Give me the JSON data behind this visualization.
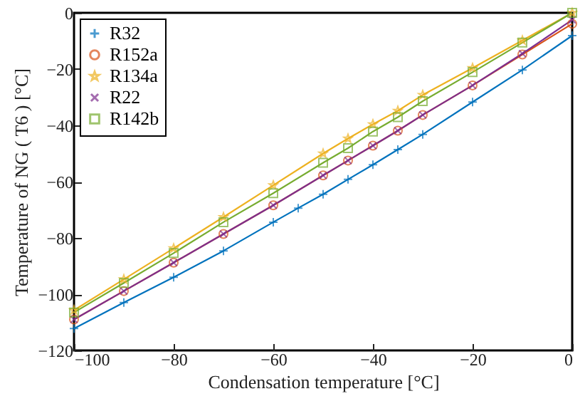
{
  "chart_data": {
    "type": "line",
    "xlabel": "Condensation temperature [°C]",
    "ylabel": "Temperature of NG ( T6 ) [°C]",
    "xlim": [
      -100,
      0
    ],
    "xticks": [
      -100,
      -80,
      -60,
      -40,
      -20,
      0
    ],
    "ylim": [
      -120,
      0
    ],
    "yticks": [
      -120,
      -100,
      -80,
      -60,
      -40,
      -20,
      0
    ],
    "grid": false,
    "legend": "top left",
    "series": [
      {
        "name": "R32",
        "color": "#0072bd",
        "marker": "cross",
        "x": [
          -100,
          -90,
          -80,
          -70,
          -60,
          -55,
          -50,
          -45,
          -40,
          -35,
          -30,
          -20,
          -10,
          0
        ],
        "values": [
          -112.2,
          -103,
          -94,
          -84.6,
          -74.4,
          -69.4,
          -64.5,
          -59.2,
          -54,
          -48.6,
          -43.2,
          -31.7,
          -20.3,
          -8.1
        ]
      },
      {
        "name": "R152a",
        "color": "#d95319",
        "marker": "circle",
        "x": [
          -100,
          -90,
          -80,
          -70,
          -60,
          -50,
          -45,
          -40,
          -35,
          -30,
          -20,
          -10,
          0
        ],
        "values": [
          -109,
          -98.9,
          -88.8,
          -78.6,
          -68.4,
          -57.8,
          -52.5,
          -47.2,
          -41.9,
          -36.3,
          -25.8,
          -14.8,
          -3.9
        ]
      },
      {
        "name": "R134a",
        "color": "#edb120",
        "marker": "star",
        "x": [
          -100,
          -90,
          -80,
          -70,
          -60,
          -50,
          -45,
          -40,
          -35,
          -30,
          -20,
          -10,
          0
        ],
        "values": [
          -105.7,
          -94.7,
          -83.7,
          -72.6,
          -61.3,
          -50,
          -44.7,
          -39.6,
          -34.8,
          -29.2,
          -19.6,
          -9.8,
          0
        ]
      },
      {
        "name": "R22",
        "color": "#7e2f8e",
        "marker": "x",
        "x": [
          -100,
          -90,
          -80,
          -70,
          -60,
          -50,
          -45,
          -40,
          -35,
          -30,
          -20,
          -10,
          0
        ],
        "values": [
          -109,
          -98.9,
          -88.8,
          -78.6,
          -68.4,
          -57.8,
          -52.5,
          -47.2,
          -41.9,
          -36.3,
          -25.8,
          -14.5,
          -2.5
        ]
      },
      {
        "name": "R142b",
        "color": "#77ac30",
        "marker": "square",
        "x": [
          -100,
          -90,
          -80,
          -70,
          -60,
          -50,
          -45,
          -40,
          -35,
          -30,
          -20,
          -10,
          0
        ],
        "values": [
          -106.5,
          -96,
          -85.4,
          -74.4,
          -64.1,
          -53.3,
          -48.1,
          -42.2,
          -37.1,
          -31.4,
          -21.1,
          -10.6,
          0
        ]
      }
    ]
  }
}
